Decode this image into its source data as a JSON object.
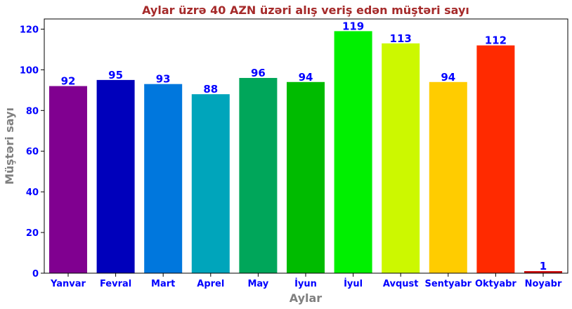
{
  "colors": {
    "title": "#a52a2a",
    "tick_text": "#0000ff",
    "axis_label": "#808080",
    "bar_label": "#0000ff",
    "frame": "#000000"
  },
  "chart_data": {
    "type": "bar",
    "title": "Aylar üzrə 40 AZN üzəri alış veriş edən müştəri sayı",
    "xlabel": "Aylar",
    "ylabel": "Müştəri sayı",
    "categories": [
      "Yanvar",
      "Fevral",
      "Mart",
      "Aprel",
      "May",
      "İyun",
      "İyul",
      "Avqust",
      "Sentyabr",
      "Oktyabr",
      "Noyabr"
    ],
    "values": [
      92,
      95,
      93,
      88,
      96,
      94,
      119,
      113,
      94,
      112,
      1
    ],
    "bar_colors": [
      "#800090",
      "#0000bb",
      "#0077dd",
      "#00a5bb",
      "#00a65a",
      "#00bb00",
      "#00f000",
      "#ccf800",
      "#ffcc00",
      "#ff2a00",
      "#cc0000"
    ],
    "ylim": [
      0,
      125
    ],
    "yticks": [
      0,
      20,
      40,
      60,
      80,
      100,
      120
    ],
    "grid": false,
    "legend": "none"
  }
}
